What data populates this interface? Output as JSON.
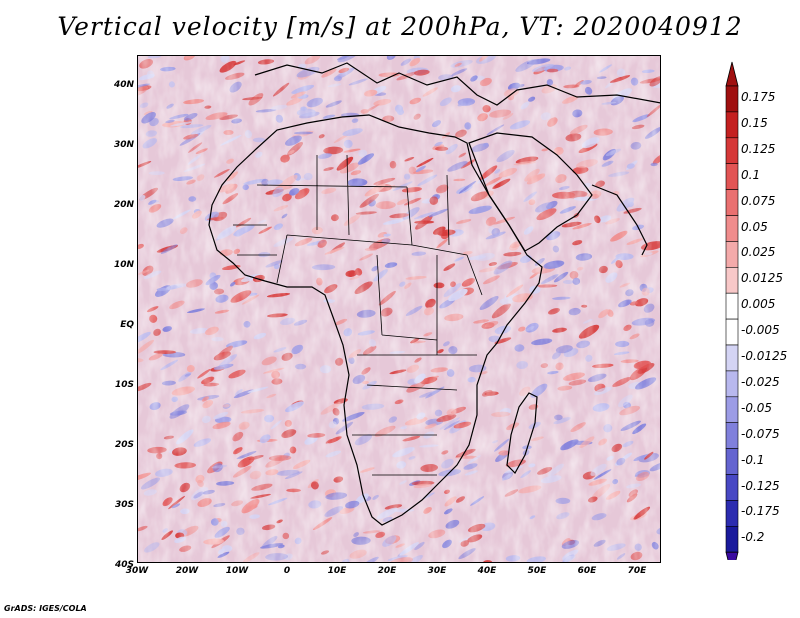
{
  "title": "Vertical velocity [m/s] at 200hPa, VT: 2020040912",
  "lat_labels": [
    "40N",
    "30N",
    "20N",
    "10N",
    "EQ",
    "10S",
    "20S",
    "30S",
    "40S"
  ],
  "lon_labels": [
    "30W",
    "20W",
    "10W",
    "0",
    "10E",
    "20E",
    "30E",
    "40E",
    "50E",
    "60E",
    "70E"
  ],
  "colorbar": {
    "labels": [
      "0.175",
      "0.15",
      "0.125",
      "0.1",
      "0.075",
      "0.05",
      "0.025",
      "0.0125",
      "0.005",
      "-0.005",
      "-0.0125",
      "-0.025",
      "-0.05",
      "-0.075",
      "-0.1",
      "-0.125",
      "-0.175",
      "-0.2"
    ],
    "colors": [
      "#a01010",
      "#c42020",
      "#d63838",
      "#e25454",
      "#ea7070",
      "#f08c8c",
      "#f4aaaa",
      "#f8c8c8",
      "#ffffff",
      "#ffffff",
      "#d4d4f4",
      "#b8b8ee",
      "#9c9ce6",
      "#8080dc",
      "#6464d0",
      "#4848c4",
      "#2c2cb0",
      "#1a1a9c"
    ],
    "top_arrow_color": "#a01010",
    "bottom_arrow_color": "#3a0aa0"
  },
  "footer": "GrADS: IGES/COLA"
}
